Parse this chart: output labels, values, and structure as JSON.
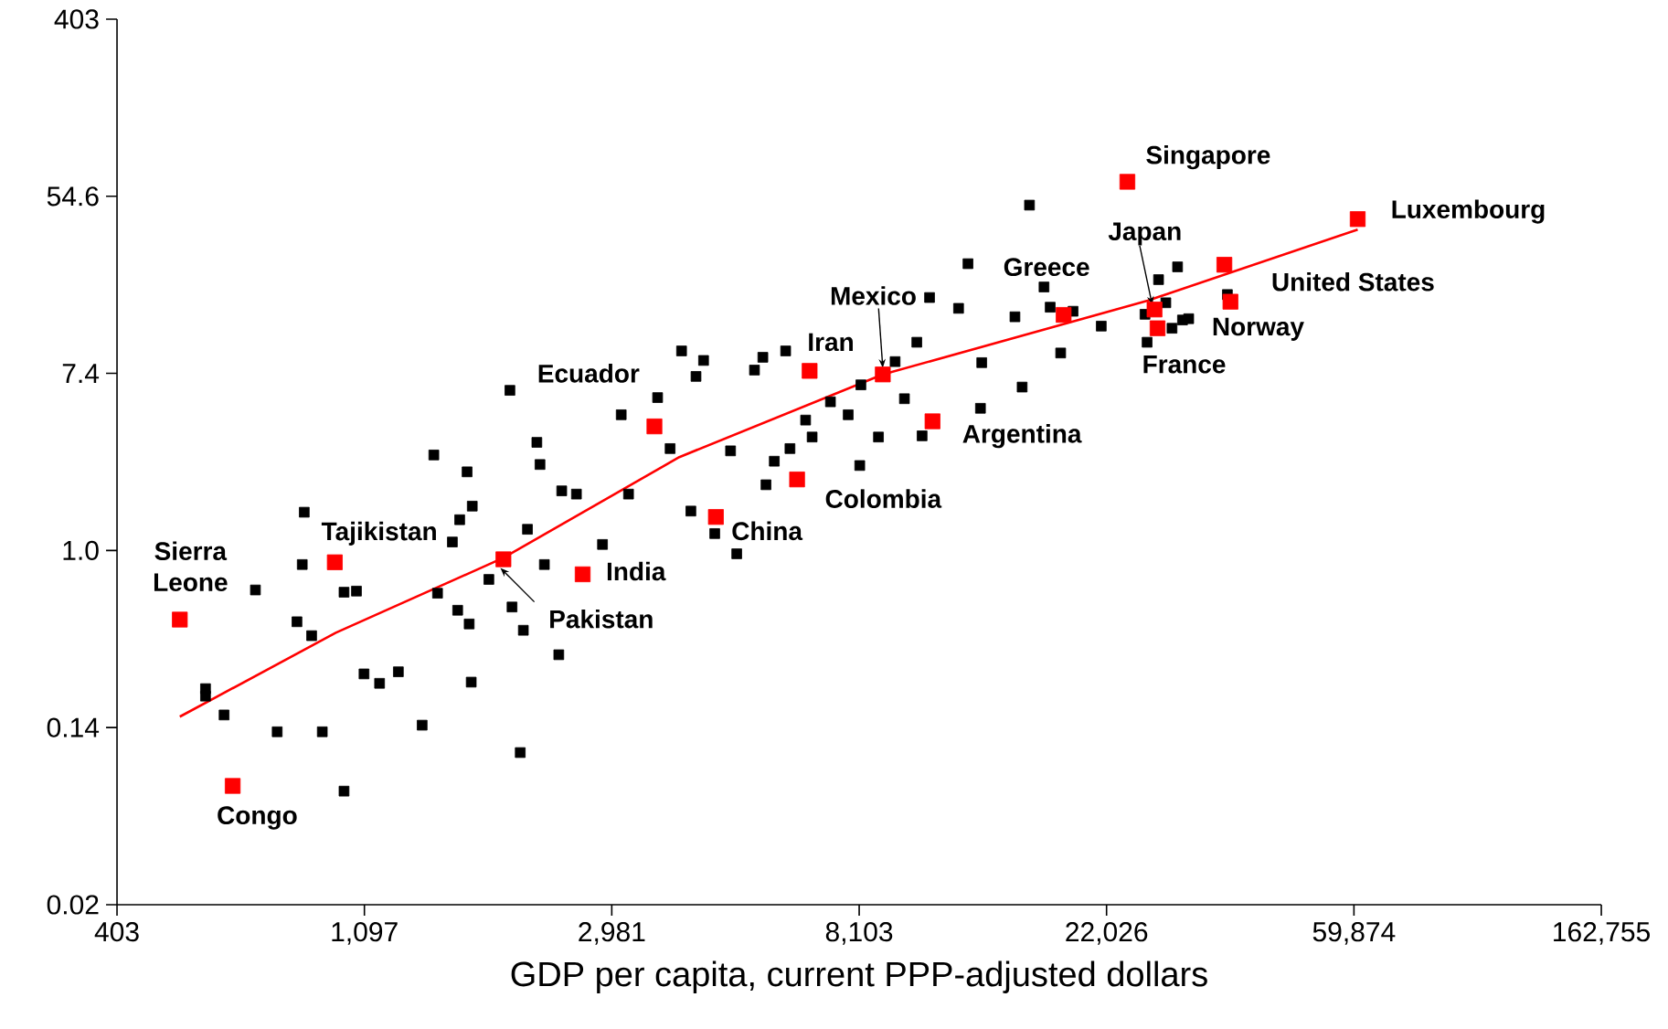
{
  "chart_data": {
    "type": "scatter",
    "xlabel": "GDP per capita, current PPP-adjusted dollars",
    "log": "xy",
    "marker": "square",
    "xlim": [
      403.43,
      162754.79
    ],
    "ylim": [
      0.0183,
      403.43
    ],
    "xticks": [
      {
        "value": 403.43,
        "label": "403"
      },
      {
        "value": 1096.63,
        "label": "1,097"
      },
      {
        "value": 2980.96,
        "label": "2,981"
      },
      {
        "value": 8103.08,
        "label": "8,103"
      },
      {
        "value": 22026.47,
        "label": "22,026"
      },
      {
        "value": 59874.14,
        "label": "59,874"
      },
      {
        "value": 162754.79,
        "label": "162,755"
      }
    ],
    "yticks": [
      {
        "value": 0.0183,
        "label": "0.02"
      },
      {
        "value": 0.1353,
        "label": "0.14"
      },
      {
        "value": 1,
        "label": "1.0"
      },
      {
        "value": 7.389,
        "label": "7.4"
      },
      {
        "value": 54.6,
        "label": "54.6"
      },
      {
        "value": 403.43,
        "label": "403"
      }
    ],
    "series": [
      {
        "color": "#000000",
        "x": [
          577,
          577,
          622,
          706,
          771,
          835,
          853,
          860,
          886,
          925,
          1010,
          1062,
          1010,
          1095,
          1166,
          1258,
          1385,
          1452,
          1474,
          1565,
          1599,
          1612,
          1661,
          1675,
          1689,
          1696,
          1814,
          1975,
          1992,
          2059,
          2085,
          2120,
          2202,
          2230,
          2270,
          2406,
          2435,
          2584,
          2871,
          3097,
          3190,
          3588,
          3774,
          3953,
          4104,
          4190,
          4320,
          4520,
          4818,
          4940,
          5307,
          5490,
          5560,
          5750,
          6020,
          6126,
          6526,
          6700,
          7216,
          7752,
          8122,
          8160,
          8760,
          9370,
          9730,
          10230,
          10450,
          10770,
          12110,
          12580,
          13230,
          13300,
          15210,
          15660,
          16130,
          17107,
          17540,
          18300,
          19240,
          21560,
          25730,
          25950,
          27180,
          27990,
          29350,
          29940,
          30700,
          35900,
          28700
        ],
        "values": [
          0.21,
          0.193,
          0.156,
          0.64,
          0.129,
          0.447,
          0.853,
          1.54,
          0.382,
          0.129,
          0.624,
          0.632,
          0.066,
          0.248,
          0.223,
          0.254,
          0.139,
          2.94,
          0.617,
          1.1,
          0.509,
          1.415,
          2.43,
          0.436,
          0.226,
          1.65,
          0.721,
          6.1,
          0.528,
          0.102,
          0.406,
          1.27,
          3.39,
          2.64,
          0.853,
          0.308,
          1.96,
          1.89,
          1.07,
          4.63,
          1.89,
          5.62,
          3.16,
          9.52,
          1.56,
          7.14,
          8.55,
          1.21,
          3.08,
          0.963,
          7.67,
          8.86,
          2.1,
          2.74,
          9.52,
          3.16,
          4.36,
          3.6,
          5.36,
          4.63,
          2.61,
          6.49,
          3.6,
          8.44,
          5.55,
          10.5,
          3.65,
          17.4,
          15.4,
          25.5,
          4.98,
          8.34,
          14.0,
          6.33,
          49.4,
          19.6,
          15.6,
          9.3,
          14.9,
          12.6,
          14.4,
          10.5,
          21.3,
          16.4,
          24.6,
          13.5,
          13.7,
          18.0,
          12.3
        ]
      },
      {
        "color": "#ff0000",
        "x": [
          520,
          644,
          973,
          1924,
          2650,
          3542,
          4541,
          6305,
          6633,
          8915,
          10900,
          18520,
          23960,
          26740,
          27070,
          35460,
          36350,
          60790
        ],
        "values": [
          0.458,
          0.07,
          0.875,
          0.905,
          0.764,
          4.06,
          1.46,
          2.23,
          7.6,
          7.3,
          4.3,
          14.3,
          64.3,
          15.2,
          12.3,
          25.2,
          16.6,
          42.2
        ]
      },
      {
        "type": "line",
        "marker": "none",
        "color": "#ff0000",
        "x": [
          520,
          977,
          1924,
          3917,
          8915,
          26000,
          60790
        ],
        "values": [
          0.153,
          0.395,
          0.92,
          2.87,
          7.3,
          16.8,
          37.5
        ]
      }
    ],
    "annotations": [
      {
        "text": "Sierra Leone",
        "x": 520,
        "y": 0.458
      },
      {
        "text": "Congo",
        "x": 644,
        "y": 0.07
      },
      {
        "text": "Tajikistan",
        "x": 973,
        "y": 0.875
      },
      {
        "text": "Pakistan",
        "x": 1924,
        "y": 0.905
      },
      {
        "text": "India",
        "x": 2650,
        "y": 0.764
      },
      {
        "text": "Ecuador",
        "x": 3542,
        "y": 4.06
      },
      {
        "text": "China",
        "x": 4541,
        "y": 1.46
      },
      {
        "text": "Colombia",
        "x": 6305,
        "y": 2.23
      },
      {
        "text": "Iran",
        "x": 6633,
        "y": 7.6
      },
      {
        "text": "Mexico",
        "x": 8915,
        "y": 7.3
      },
      {
        "text": "Argentina",
        "x": 10900,
        "y": 4.3
      },
      {
        "text": "Greece",
        "x": 18520,
        "y": 14.3
      },
      {
        "text": "Singapore",
        "x": 23960,
        "y": 64.3
      },
      {
        "text": "Japan",
        "x": 26740,
        "y": 15.2
      },
      {
        "text": "France",
        "x": 27070,
        "y": 12.3
      },
      {
        "text": "United States",
        "x": 35460,
        "y": 25.2
      },
      {
        "text": "Norway",
        "x": 36350,
        "y": 16.6
      },
      {
        "text": "Luxembourg",
        "x": 60790,
        "y": 42.2
      }
    ]
  }
}
